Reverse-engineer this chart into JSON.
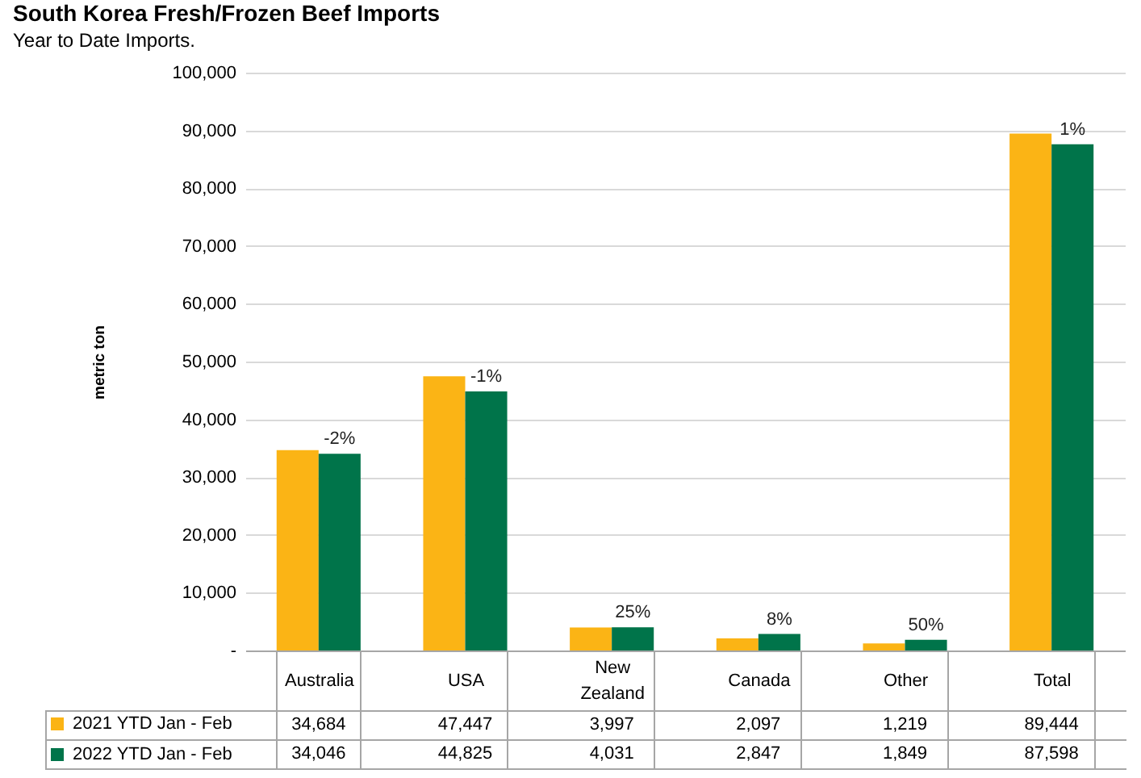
{
  "chart_data": {
    "type": "bar",
    "title": "South Korea Fresh/Frozen Beef Imports",
    "subtitle": "Year to Date Imports.",
    "ylabel": "metric ton",
    "categories": [
      "Australia",
      "USA",
      "New Zealand",
      "Canada",
      "Other",
      "Total"
    ],
    "series": [
      {
        "name": "2021 YTD Jan - Feb",
        "color": "#fbb415",
        "values": [
          34684,
          47447,
          3997,
          2097,
          1219,
          89444
        ],
        "value_labels": [
          "34,684",
          "47,447",
          "3,997",
          "2,097",
          "1,219",
          "89,444"
        ]
      },
      {
        "name": "2022 YTD Jan - Feb",
        "color": "#00744a",
        "values": [
          34046,
          44825,
          4031,
          2847,
          1849,
          87598
        ],
        "value_labels": [
          "34,046",
          "44,825",
          "4,031",
          "2,847",
          "1,849",
          "87,598"
        ]
      }
    ],
    "ylim": [
      0,
      100000
    ],
    "yticks": [
      {
        "value": 0,
        "label": "-"
      },
      {
        "value": 10000,
        "label": "10,000"
      },
      {
        "value": 20000,
        "label": "20,000"
      },
      {
        "value": 30000,
        "label": "30,000"
      },
      {
        "value": 40000,
        "label": "40,000"
      },
      {
        "value": 50000,
        "label": "50,000"
      },
      {
        "value": 60000,
        "label": "60,000"
      },
      {
        "value": 70000,
        "label": "70,000"
      },
      {
        "value": 80000,
        "label": "80,000"
      },
      {
        "value": 90000,
        "label": "90,000"
      },
      {
        "value": 100000,
        "label": "100,000"
      }
    ],
    "grid": "y",
    "legend": "bottom left",
    "annotations": [
      {
        "text": "-2%",
        "x": "Australia",
        "y": 34046
      },
      {
        "text": "-1%",
        "x": "USA",
        "y": 44825
      },
      {
        "text": "25%",
        "x": "New Zealand",
        "y": 4031
      },
      {
        "text": "8%",
        "x": "Canada",
        "y": 2847
      },
      {
        "text": "50%",
        "x": "Other",
        "y": 1849
      },
      {
        "text": "1%",
        "x": "Total",
        "y": 87598
      }
    ]
  }
}
